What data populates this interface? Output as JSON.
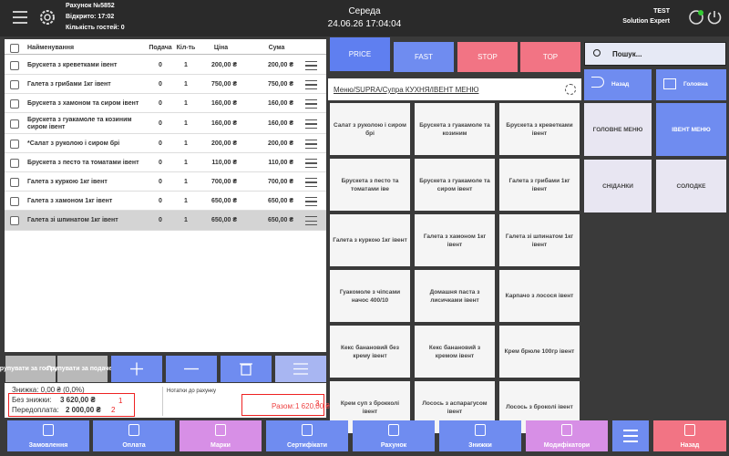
{
  "header": {
    "receipt": "Рахунок №5852",
    "opened": "Відкрито: 17:02",
    "guests": "Кількість гостей: 0",
    "day": "Середа",
    "datetime": "24.06.26 17:04:04",
    "user": "TEST",
    "company": "Solution Expert"
  },
  "order_table": {
    "columns": [
      "Найменування",
      "Подача",
      "Кіл-ть",
      "Ціна",
      "Сума"
    ],
    "rows": [
      [
        "Брускета з креветками івент",
        "0",
        "1",
        "200,00 ₴",
        "200,00 ₴"
      ],
      [
        "Галета з грибами 1кг івент",
        "0",
        "1",
        "750,00 ₴",
        "750,00 ₴"
      ],
      [
        "Брускета з хамоном та сиром івент",
        "0",
        "1",
        "160,00 ₴",
        "160,00 ₴"
      ],
      [
        "Брускета з гуакамоле та козиним сиром івент",
        "0",
        "1",
        "160,00 ₴",
        "160,00 ₴"
      ],
      [
        "*Салат з руколою і сиром брі",
        "0",
        "1",
        "200,00 ₴",
        "200,00 ₴"
      ],
      [
        "Брускета з песто та томатами івент",
        "0",
        "1",
        "110,00 ₴",
        "110,00 ₴"
      ],
      [
        "Галета з куркою 1кг івент",
        "0",
        "1",
        "700,00 ₴",
        "700,00 ₴"
      ],
      [
        "Галета з хамоном 1кг івент",
        "0",
        "1",
        "650,00 ₴",
        "650,00 ₴"
      ],
      [
        "Галета зі шпинатом 1кг івент",
        "0",
        "1",
        "650,00 ₴",
        "650,00 ₴"
      ]
    ]
  },
  "group_buttons": [
    "Групувати за гостями",
    "Групувати за подачею"
  ],
  "summary": {
    "discount": "Знижка: 0,00 ₴ (0,0%)",
    "no_discount_label": "Без знижки:",
    "no_discount_value": "3 620,00 ₴",
    "prepay_label": "Передоплата:",
    "prepay_value": "2 000,00 ₴",
    "notes": "Нотатки до рахунку",
    "total_label": "Разом:",
    "total_value": "1 620,00 ₴",
    "annotations": [
      "1",
      "2",
      "3"
    ]
  },
  "tabs": [
    "PRICE",
    "FAST",
    "STOP",
    "TOP"
  ],
  "breadcrumb": "Меню/SUPRA/Супра КУХНЯ/ІВЕНТ МЕНЮ",
  "menu_items": [
    "Салат з руколою і сиром брі",
    "Брускета з гуакамоле та козиним",
    "Брускета з креветками івент",
    "Брускета з песто та томатами іве",
    "Брускета з гуакамоле та сиром івент",
    "Галета з грибами 1кг івент",
    "Галета з куркою 1кг івент",
    "Галета з хамоном 1кг івент",
    "Галета зі шпинатом 1кг івент",
    "Гуакомоле з чіпсами начос 400/10",
    "Домашня паста з лисичками івент",
    "Карпачо з лосося івент",
    "Кекс банановий без крему івент",
    "Кекс банановий з кремом івент",
    "Крем брюле 100гр івент",
    "Крем суп з брокколі івент",
    "Лосось з аспарагусом івент",
    "Лосось з броколі івент"
  ],
  "search": "Пошук...",
  "nav": [
    "Назад",
    "Головна"
  ],
  "categories": [
    "ГОЛОВНЕ МЕНЮ",
    "ІВЕНТ МЕНЮ",
    "СНІДАНКИ",
    "СОЛОДКЕ"
  ],
  "bottom_buttons": [
    "Замовлення",
    "Оплата",
    "Марки",
    "Сертифікати",
    "Рахунок",
    "Знижки",
    "Модифікатори",
    "Назад"
  ]
}
